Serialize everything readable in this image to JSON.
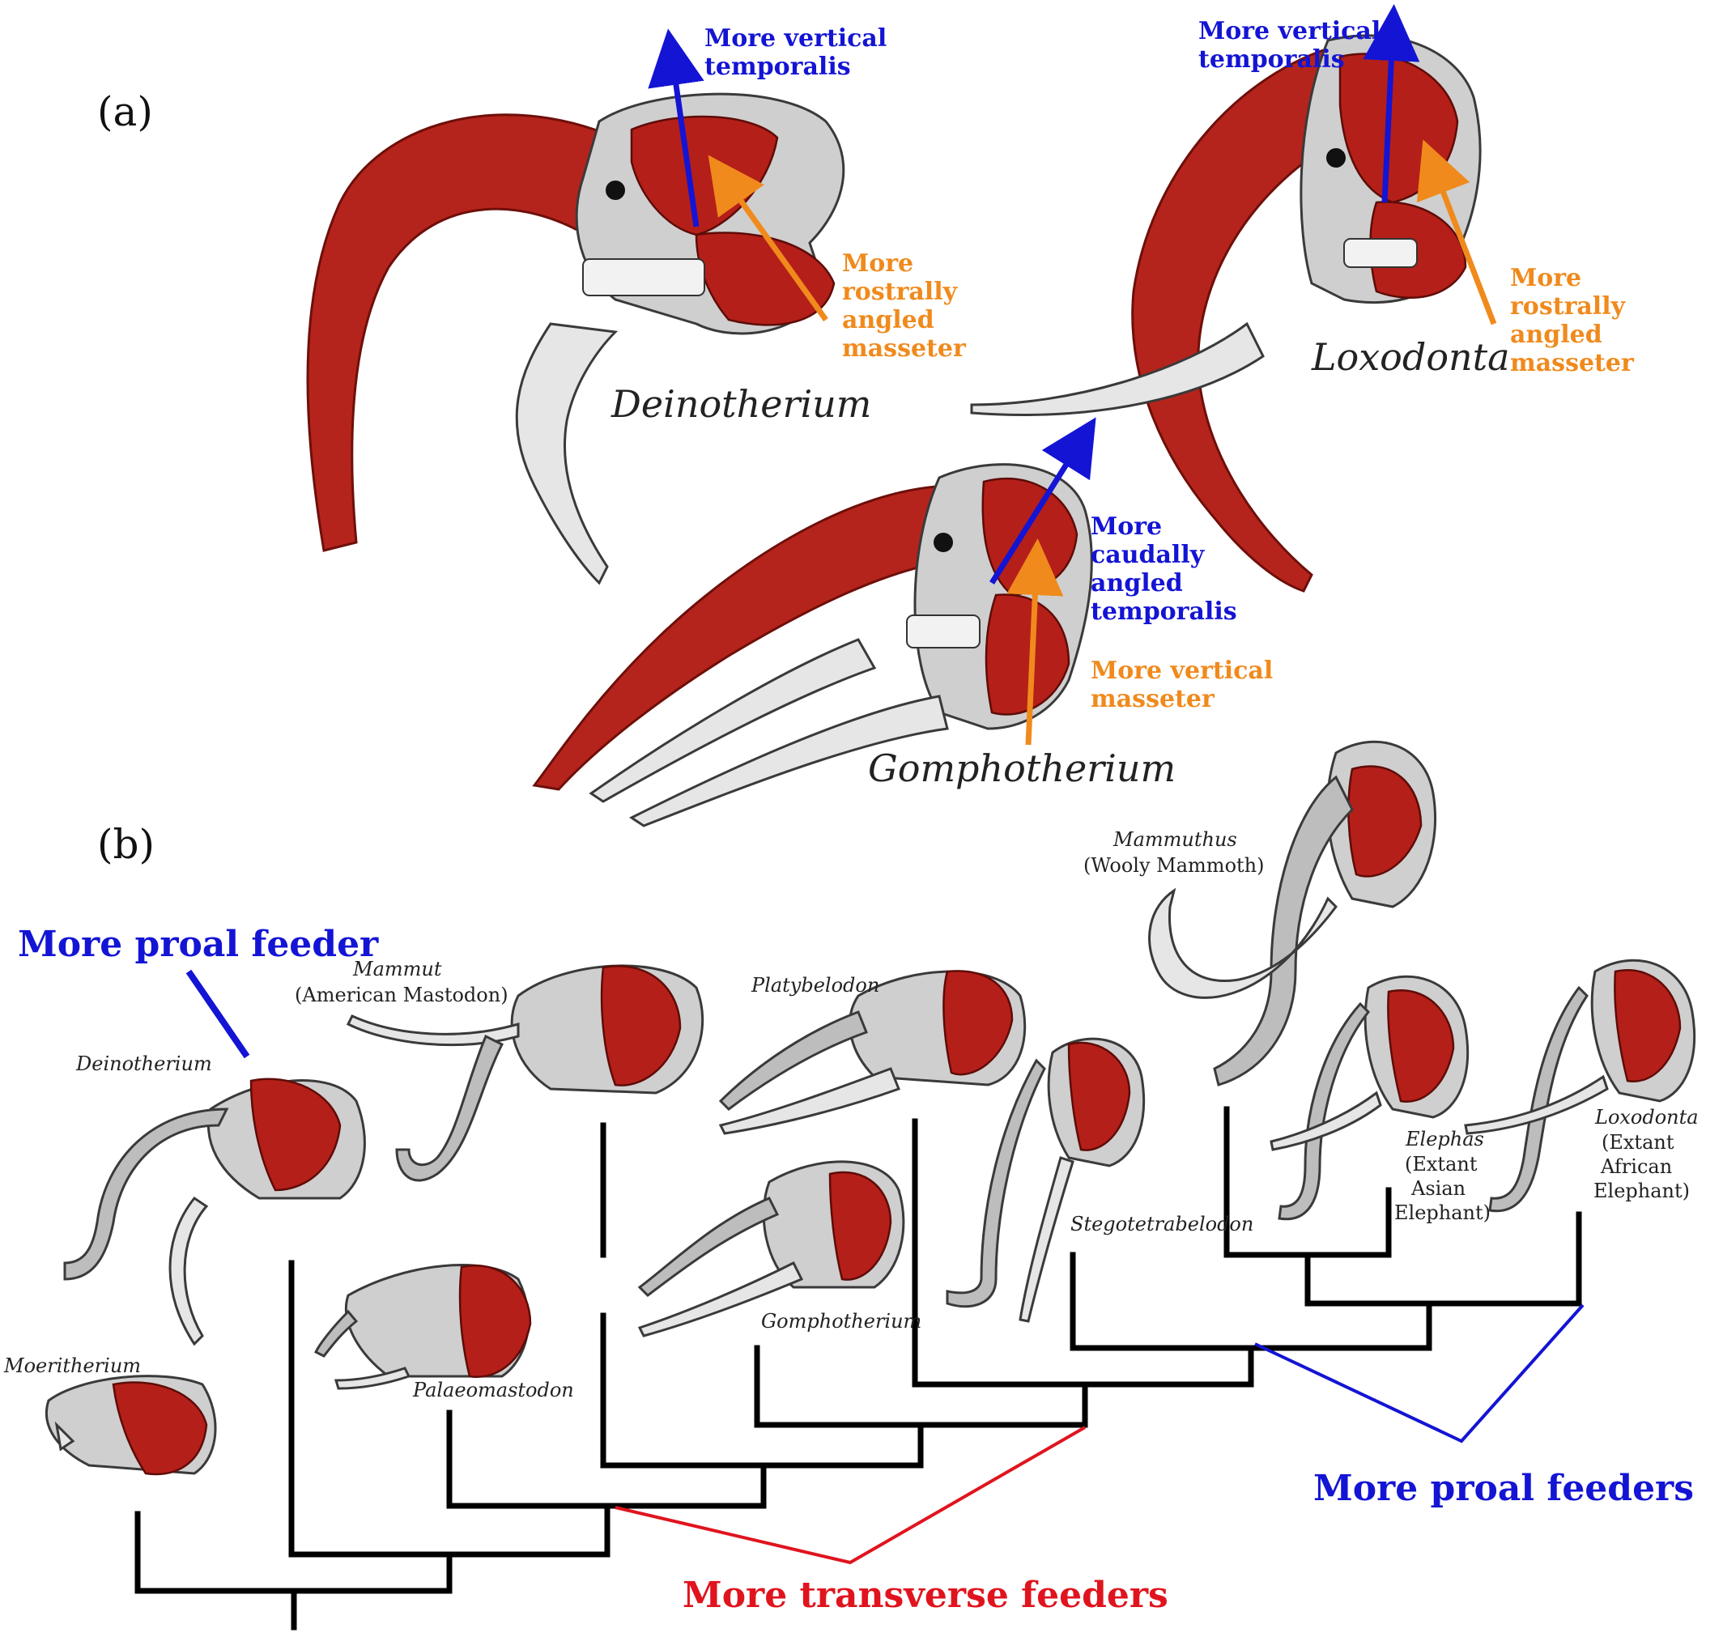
{
  "panel_a": {
    "label": "(a)",
    "deinotherium": {
      "name": "Deinotherium",
      "temporalis_label": [
        "More vertical",
        "temporalis"
      ],
      "masseter_label": [
        "More",
        "rostrally",
        "angled",
        "masseter"
      ]
    },
    "loxodonta": {
      "name": "Loxodonta",
      "temporalis_label": [
        "More vertical",
        "temporalis"
      ],
      "masseter_label": [
        "More",
        "rostrally",
        "angled",
        "masseter"
      ]
    },
    "gomphotherium": {
      "name": "Gomphotherium",
      "temporalis_label": [
        "More",
        "caudally",
        "angled",
        "temporalis"
      ],
      "masseter_label": [
        "More vertical",
        "masseter"
      ]
    }
  },
  "panel_b": {
    "label": "(b)",
    "proal_feeder_label": "More proal feeder",
    "proal_feeders_label": "More proal feeders",
    "transverse_feeders_label": "More transverse feeders",
    "taxa": {
      "mammuthus": {
        "name": "Mammuthus",
        "common": "(Wooly Mammoth)"
      },
      "mammut": {
        "name": "Mammut",
        "common": "(American Mastodon)"
      },
      "platybelodon": {
        "name": "Platybelodon"
      },
      "deinotherium": {
        "name": "Deinotherium"
      },
      "stegotetrabelodon": {
        "name": "Stegotetrabelodon"
      },
      "elephas": {
        "name": "Elephas",
        "common": [
          "(Extant",
          "Asian",
          "Elephant)"
        ]
      },
      "loxodonta": {
        "name": "Loxodonta",
        "common": [
          "(Extant",
          "African",
          "Elephant)"
        ]
      },
      "gomphotherium": {
        "name": "Gomphotherium"
      },
      "moeritherium": {
        "name": "Moeritherium"
      },
      "palaeomastodon": {
        "name": "Palaeomastodon"
      }
    }
  },
  "colors": {
    "temporalis_arrow": "#1414d4",
    "masseter_arrow": "#f08a1c",
    "muscle": "#b51f19",
    "proal": "#1414d4",
    "transverse": "#e0141e",
    "tree": "#000000"
  }
}
